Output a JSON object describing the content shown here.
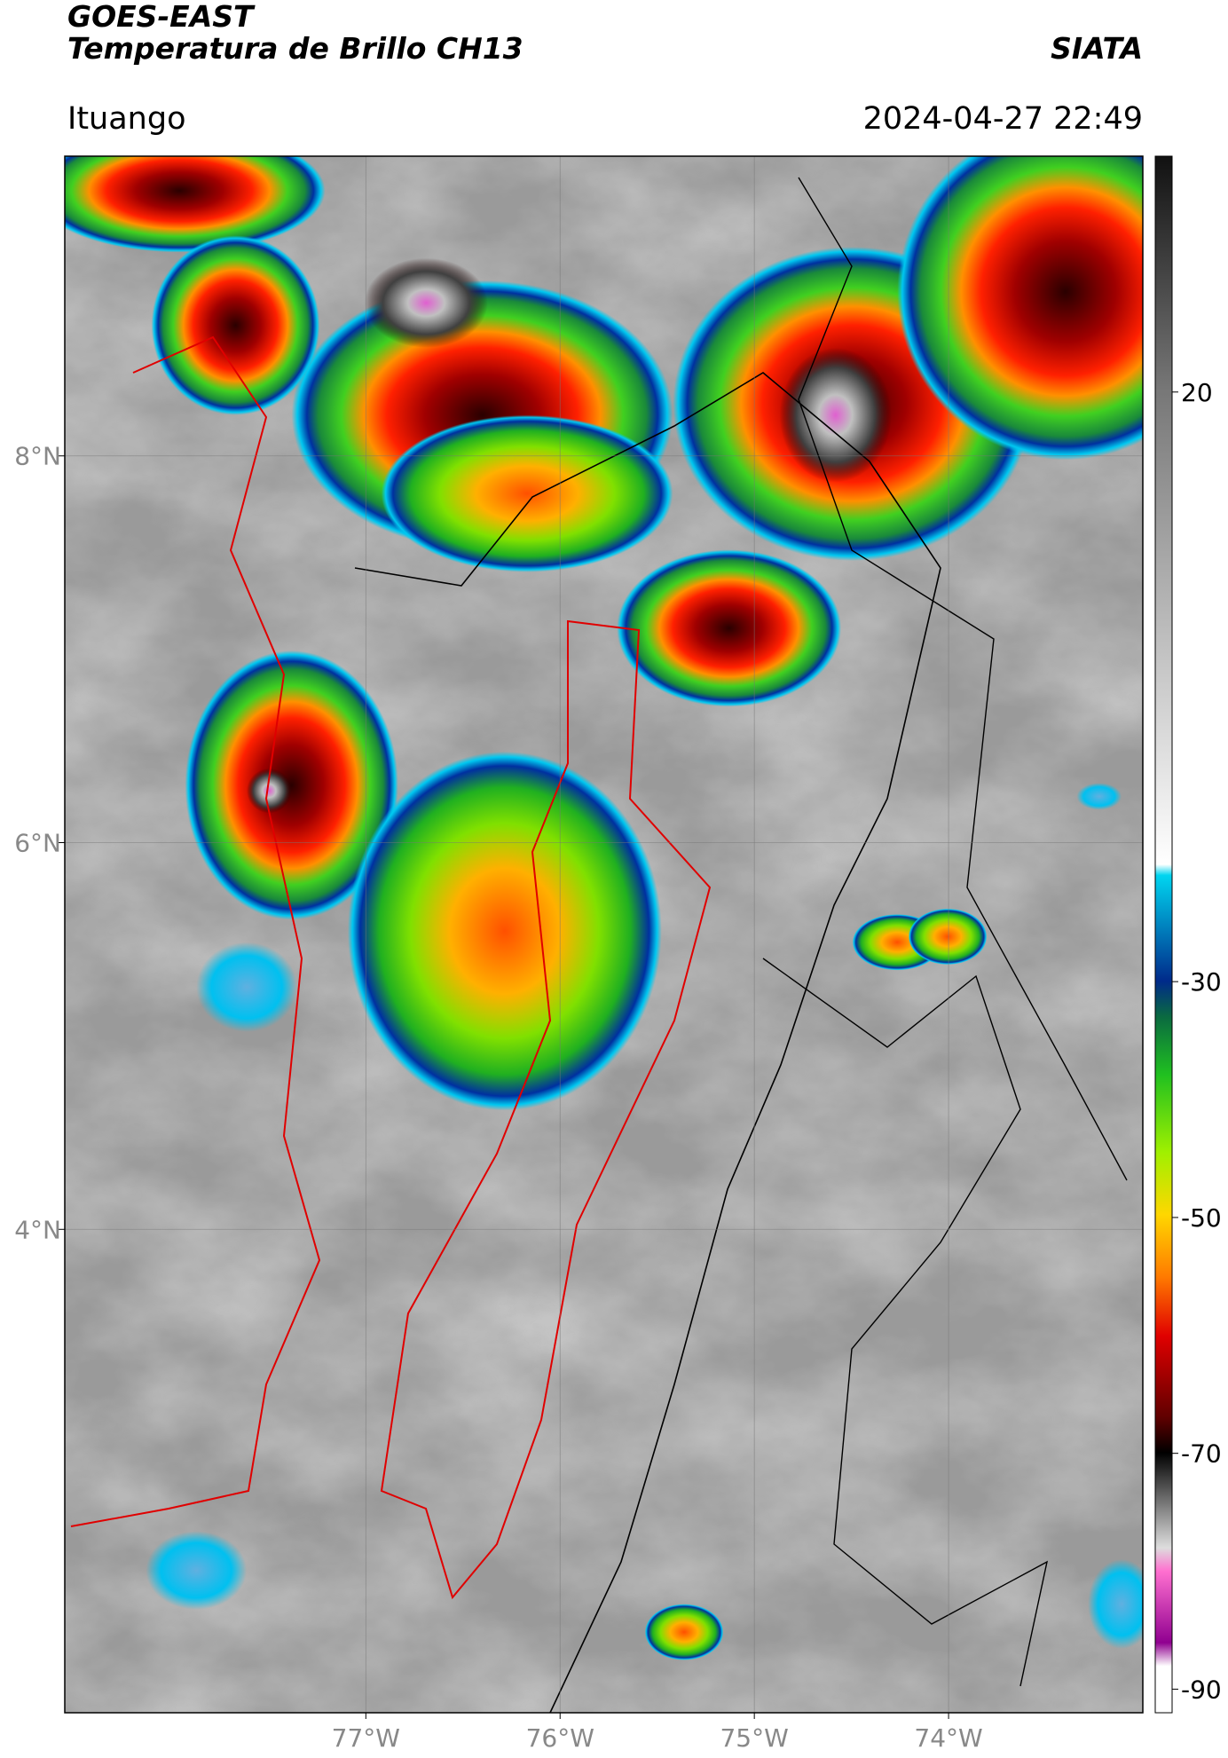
{
  "chart_data": {
    "type": "map",
    "title": "GOES-EAST",
    "subtitle": "Temperatura de Brillo CH13",
    "source": "SIATA",
    "location": "Ituango",
    "datetime": "2024-04-27 22:49",
    "xlim": [
      -78.55,
      -73.0
    ],
    "ylim": [
      1.5,
      9.55
    ],
    "xticks": [
      {
        "value": -77,
        "label": "77°W"
      },
      {
        "value": -76,
        "label": "76°W"
      },
      {
        "value": -75,
        "label": "75°W"
      },
      {
        "value": -74,
        "label": "74°W"
      }
    ],
    "yticks": [
      {
        "value": 4,
        "label": "4°N"
      },
      {
        "value": 6,
        "label": "6°N"
      },
      {
        "value": 8,
        "label": "8°N"
      }
    ],
    "grid": true,
    "colorbar": {
      "lim": [
        -92,
        40
      ],
      "ticks": [
        20,
        -30,
        -50,
        -70,
        -90
      ]
    }
  }
}
